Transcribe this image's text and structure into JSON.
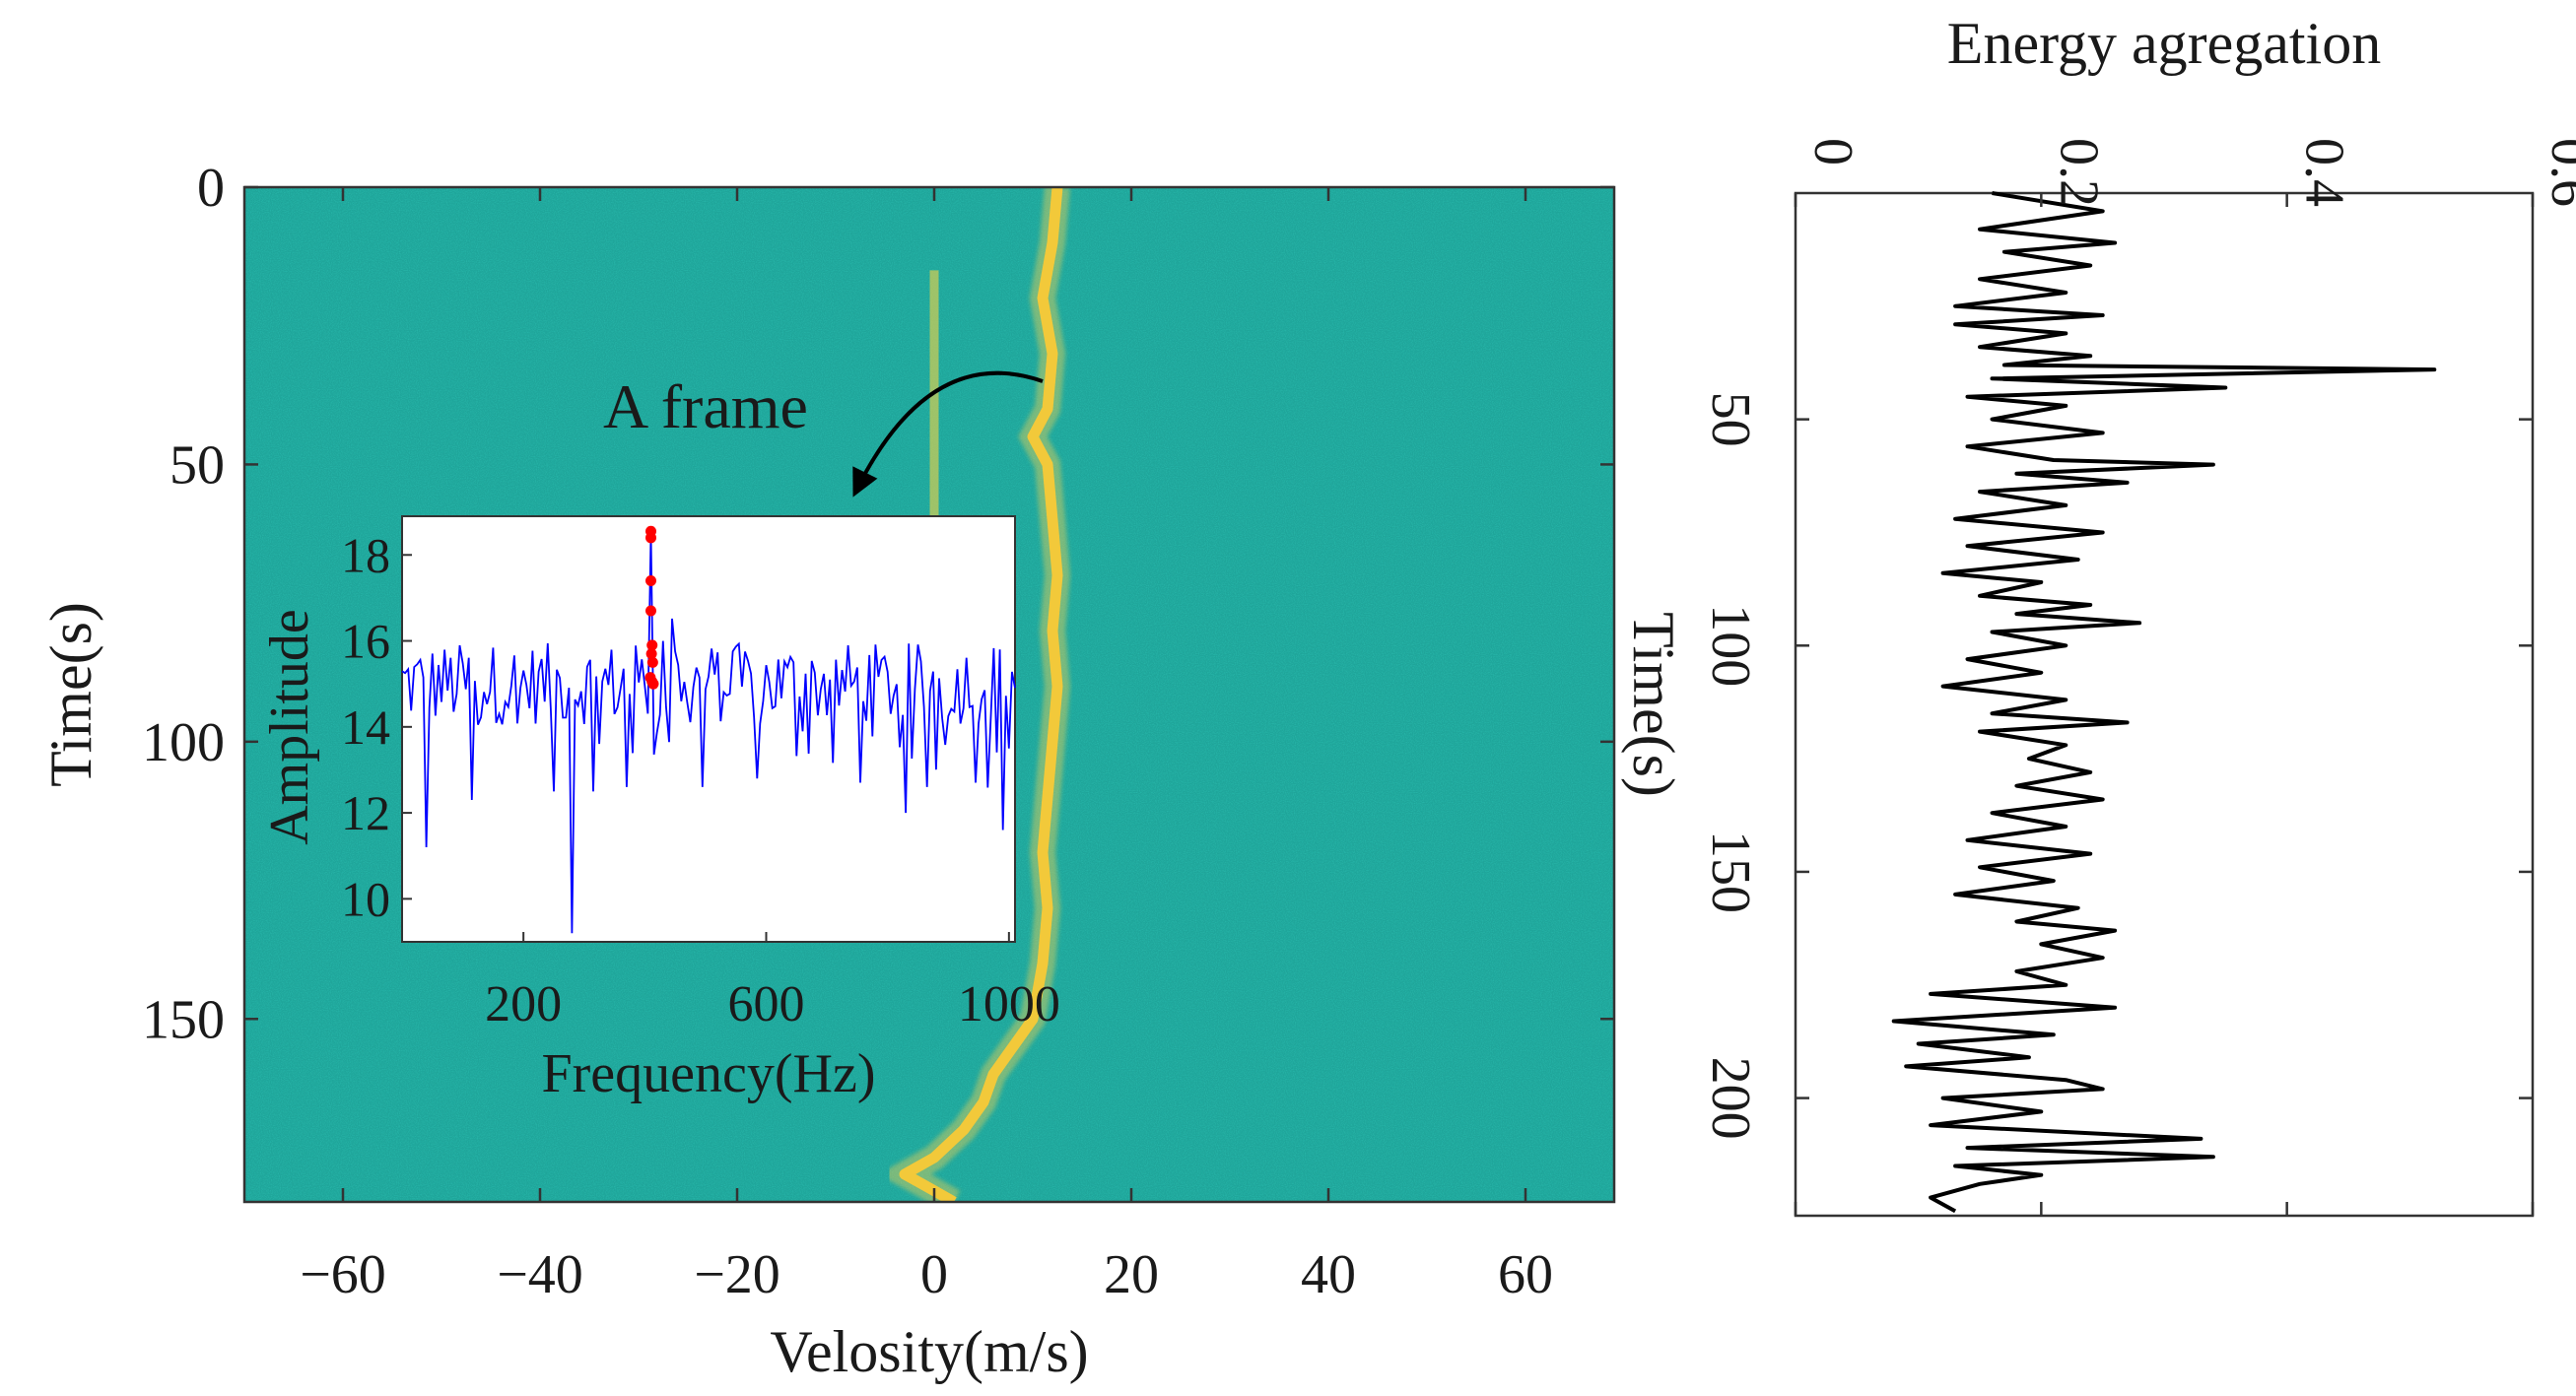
{
  "chart_data": [
    {
      "type": "heatmap",
      "name": "velocity-time spectrogram",
      "xlabel": "Velosity(m/s)",
      "ylabel": "Time(s)",
      "xlim": [
        -70,
        69
      ],
      "ylim": [
        0,
        183
      ],
      "y_reversed": true,
      "xticks": [
        -60,
        -40,
        -20,
        0,
        20,
        40,
        60
      ],
      "xtick_labels": [
        "−60",
        "−40",
        "−20",
        "0",
        "20",
        "40",
        "60"
      ],
      "yticks": [
        0,
        50,
        100,
        150
      ],
      "colors": {
        "background": "#1fa59a",
        "noise_dark": "#138f92",
        "noise_light": "#3fb98a",
        "signal": "#f2c93a",
        "signal_weak": "#c9cc58"
      },
      "target_track": [
        {
          "t": 0,
          "v": 12.5
        },
        {
          "t": 10,
          "v": 12.0
        },
        {
          "t": 20,
          "v": 11.0
        },
        {
          "t": 30,
          "v": 12.0
        },
        {
          "t": 40,
          "v": 11.5
        },
        {
          "t": 45,
          "v": 10.0
        },
        {
          "t": 50,
          "v": 11.5
        },
        {
          "t": 60,
          "v": 12.0
        },
        {
          "t": 70,
          "v": 12.5
        },
        {
          "t": 80,
          "v": 12.0
        },
        {
          "t": 90,
          "v": 12.5
        },
        {
          "t": 100,
          "v": 12.0
        },
        {
          "t": 110,
          "v": 11.5
        },
        {
          "t": 120,
          "v": 11.0
        },
        {
          "t": 130,
          "v": 11.5
        },
        {
          "t": 140,
          "v": 11.0
        },
        {
          "t": 150,
          "v": 10.0
        },
        {
          "t": 155,
          "v": 8.0
        },
        {
          "t": 160,
          "v": 6.0
        },
        {
          "t": 165,
          "v": 5.0
        },
        {
          "t": 170,
          "v": 3.0
        },
        {
          "t": 175,
          "v": 0.0
        },
        {
          "t": 178,
          "v": -3.0
        },
        {
          "t": 180,
          "v": -1.0
        },
        {
          "t": 183,
          "v": 2.0
        }
      ],
      "zero_line_segment": {
        "v": 0,
        "t_from": 15,
        "t_to": 70
      },
      "annotation": {
        "text": "A frame",
        "arrow_from": {
          "v": 11,
          "t": 35
        },
        "arrow_to": {
          "v": -8,
          "t": 55
        }
      }
    },
    {
      "type": "line",
      "name": "inset: a single frame spectrum",
      "xlabel": "Frequency(Hz)",
      "ylabel": "Amplitude",
      "xlim": [
        0,
        1010
      ],
      "ylim": [
        9,
        18.9
      ],
      "xticks": [
        200,
        600,
        1000
      ],
      "yticks": [
        10,
        12,
        14,
        16,
        18
      ],
      "series_color": "#0000ff",
      "marker_color": "#ff0000",
      "baseline_mean": 15.0,
      "deep_dips": [
        {
          "f": 40,
          "a": 11.2
        },
        {
          "f": 115,
          "a": 12.3
        },
        {
          "f": 250,
          "a": 12.5
        },
        {
          "f": 280,
          "a": 9.2
        },
        {
          "f": 315,
          "a": 12.5
        },
        {
          "f": 370,
          "a": 12.6
        },
        {
          "f": 495,
          "a": 12.6
        },
        {
          "f": 585,
          "a": 12.8
        },
        {
          "f": 755,
          "a": 12.7
        },
        {
          "f": 830,
          "a": 12.0
        },
        {
          "f": 945,
          "a": 12.7
        },
        {
          "f": 990,
          "a": 11.6
        }
      ],
      "peak": {
        "f": 410,
        "a": 18.5
      },
      "peak_markers": [
        {
          "f": 410,
          "a": 18.55
        },
        {
          "f": 410,
          "a": 18.4
        },
        {
          "f": 410,
          "a": 17.4
        },
        {
          "f": 410,
          "a": 16.7
        },
        {
          "f": 412,
          "a": 15.9
        },
        {
          "f": 411,
          "a": 15.7
        },
        {
          "f": 413,
          "a": 15.5
        },
        {
          "f": 409,
          "a": 15.15
        },
        {
          "f": 412,
          "a": 15.05
        },
        {
          "f": 414,
          "a": 15.0
        }
      ]
    },
    {
      "type": "line",
      "name": "energy aggregation",
      "title": "Energy agregation",
      "ylabel": "Time(s)",
      "xlim": [
        0,
        0.6
      ],
      "ylim": [
        0,
        226
      ],
      "y_reversed": true,
      "xticks": [
        0,
        0.2,
        0.4,
        0.6
      ],
      "xtick_labels": [
        "0",
        "0.2",
        "0.4",
        "0.6"
      ],
      "yticks": [
        50,
        100,
        150,
        200
      ],
      "series_color": "#000000",
      "series": [
        {
          "t": 0,
          "e": 0.16
        },
        {
          "t": 4,
          "e": 0.25
        },
        {
          "t": 8,
          "e": 0.15
        },
        {
          "t": 11,
          "e": 0.26
        },
        {
          "t": 13,
          "e": 0.17
        },
        {
          "t": 16,
          "e": 0.24
        },
        {
          "t": 19,
          "e": 0.15
        },
        {
          "t": 22,
          "e": 0.22
        },
        {
          "t": 25,
          "e": 0.13
        },
        {
          "t": 27,
          "e": 0.25
        },
        {
          "t": 29,
          "e": 0.13
        },
        {
          "t": 31,
          "e": 0.22
        },
        {
          "t": 34,
          "e": 0.15
        },
        {
          "t": 36,
          "e": 0.24
        },
        {
          "t": 38,
          "e": 0.17
        },
        {
          "t": 39,
          "e": 0.52
        },
        {
          "t": 41,
          "e": 0.16
        },
        {
          "t": 43,
          "e": 0.35
        },
        {
          "t": 45,
          "e": 0.14
        },
        {
          "t": 47,
          "e": 0.22
        },
        {
          "t": 50,
          "e": 0.16
        },
        {
          "t": 53,
          "e": 0.25
        },
        {
          "t": 56,
          "e": 0.14
        },
        {
          "t": 59,
          "e": 0.21
        },
        {
          "t": 60,
          "e": 0.34
        },
        {
          "t": 62,
          "e": 0.18
        },
        {
          "t": 64,
          "e": 0.27
        },
        {
          "t": 66,
          "e": 0.15
        },
        {
          "t": 69,
          "e": 0.22
        },
        {
          "t": 72,
          "e": 0.13
        },
        {
          "t": 75,
          "e": 0.25
        },
        {
          "t": 78,
          "e": 0.14
        },
        {
          "t": 81,
          "e": 0.23
        },
        {
          "t": 84,
          "e": 0.12
        },
        {
          "t": 86,
          "e": 0.2
        },
        {
          "t": 89,
          "e": 0.15
        },
        {
          "t": 91,
          "e": 0.24
        },
        {
          "t": 93,
          "e": 0.18
        },
        {
          "t": 95,
          "e": 0.28
        },
        {
          "t": 97,
          "e": 0.16
        },
        {
          "t": 100,
          "e": 0.22
        },
        {
          "t": 103,
          "e": 0.14
        },
        {
          "t": 106,
          "e": 0.2
        },
        {
          "t": 109,
          "e": 0.12
        },
        {
          "t": 112,
          "e": 0.22
        },
        {
          "t": 115,
          "e": 0.16
        },
        {
          "t": 117,
          "e": 0.27
        },
        {
          "t": 119,
          "e": 0.15
        },
        {
          "t": 122,
          "e": 0.22
        },
        {
          "t": 125,
          "e": 0.19
        },
        {
          "t": 128,
          "e": 0.24
        },
        {
          "t": 131,
          "e": 0.18
        },
        {
          "t": 134,
          "e": 0.25
        },
        {
          "t": 137,
          "e": 0.16
        },
        {
          "t": 140,
          "e": 0.22
        },
        {
          "t": 143,
          "e": 0.14
        },
        {
          "t": 146,
          "e": 0.24
        },
        {
          "t": 149,
          "e": 0.15
        },
        {
          "t": 152,
          "e": 0.21
        },
        {
          "t": 155,
          "e": 0.13
        },
        {
          "t": 158,
          "e": 0.23
        },
        {
          "t": 161,
          "e": 0.18
        },
        {
          "t": 163,
          "e": 0.26
        },
        {
          "t": 166,
          "e": 0.2
        },
        {
          "t": 169,
          "e": 0.25
        },
        {
          "t": 172,
          "e": 0.18
        },
        {
          "t": 175,
          "e": 0.22
        },
        {
          "t": 177,
          "e": 0.11
        },
        {
          "t": 180,
          "e": 0.26
        },
        {
          "t": 183,
          "e": 0.08
        },
        {
          "t": 186,
          "e": 0.21
        },
        {
          "t": 188,
          "e": 0.1
        },
        {
          "t": 191,
          "e": 0.19
        },
        {
          "t": 193,
          "e": 0.09
        },
        {
          "t": 196,
          "e": 0.22
        },
        {
          "t": 198,
          "e": 0.25
        },
        {
          "t": 200,
          "e": 0.12
        },
        {
          "t": 203,
          "e": 0.2
        },
        {
          "t": 206,
          "e": 0.11
        },
        {
          "t": 209,
          "e": 0.33
        },
        {
          "t": 211,
          "e": 0.14
        },
        {
          "t": 213,
          "e": 0.34
        },
        {
          "t": 215,
          "e": 0.13
        },
        {
          "t": 217,
          "e": 0.2
        },
        {
          "t": 219,
          "e": 0.15
        },
        {
          "t": 222,
          "e": 0.11
        },
        {
          "t": 225,
          "e": 0.13
        }
      ]
    }
  ]
}
